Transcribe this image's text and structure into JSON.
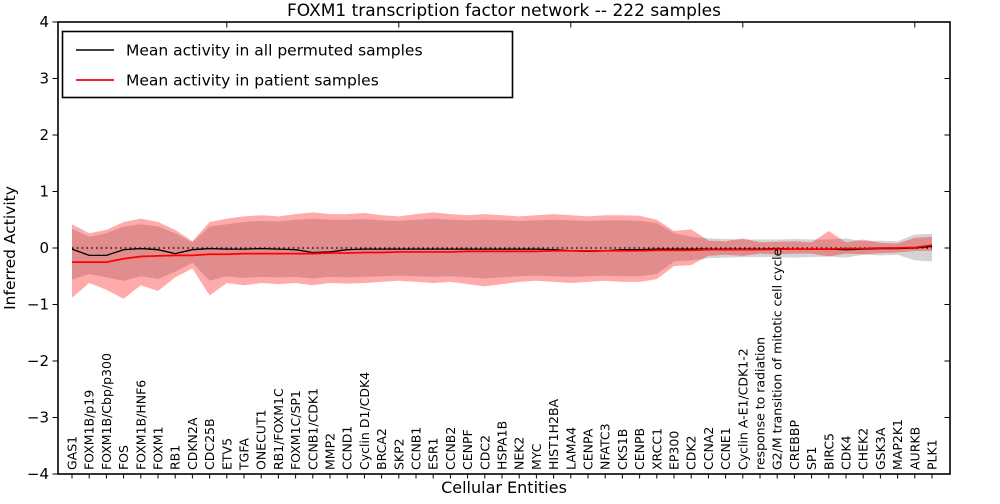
{
  "chart": {
    "title": "FOXM1 transcription factor network -- 222 samples",
    "xlabel": "Cellular Entities",
    "ylabel": "Inferred Activity"
  },
  "legend": {
    "items": [
      {
        "label": "Mean activity in all permuted samples",
        "color": "#000000"
      },
      {
        "label": "Mean activity in patient samples",
        "color": "#ff0000"
      }
    ]
  },
  "chart_data": {
    "type": "line",
    "title": "FOXM1 transcription factor network -- 222 samples",
    "xlabel": "Cellular Entities",
    "ylabel": "Inferred Activity",
    "ylim": [
      -4,
      4
    ],
    "ytick_labels": [
      "4",
      "3",
      "2",
      "1",
      "0",
      "−1",
      "−2",
      "−3",
      "−4"
    ],
    "ytick_values": [
      4,
      3,
      2,
      1,
      0,
      -1,
      -2,
      -3,
      -4
    ],
    "top_axis_tick_positions": [
      10,
      20,
      30,
      40,
      50
    ],
    "grid": false,
    "zero_line": "dotted",
    "legend_position": "upper left",
    "categories": [
      "GAS1",
      "FOXM1B/p19",
      "FOXM1B/Cbp/p300",
      "FOS",
      "FOXM1B/HNF6",
      "FOXM1",
      "RB1",
      "CDKN2A",
      "CDC25B",
      "ETV5",
      "TGFA",
      "ONECUT1",
      "RB1/FOXM1C",
      "FOXM1C/SP1",
      "CCNB1/CDK1",
      "MMP2",
      "CCND1",
      "Cyclin D1/CDK4",
      "BRCA2",
      "SKP2",
      "CCNB1",
      "ESR1",
      "CCNB2",
      "CENPF",
      "CDC2",
      "HSPA1B",
      "NEK2",
      "MYC",
      "HIST1H2BA",
      "LAMA4",
      "CENPA",
      "NFATC3",
      "CKS1B",
      "CENPB",
      "XRCC1",
      "EP300",
      "CDK2",
      "CCNA2",
      "CCNE1",
      "Cyclin A-E1/CDK1-2",
      "response to radiation",
      "G2/M transition of mitotic cell cycle",
      "CREBBP",
      "SP1",
      "BIRC5",
      "CDK4",
      "CHEK2",
      "GSK3A",
      "MAP2K1",
      "AURKB",
      "PLK1"
    ],
    "series": [
      {
        "name": "Mean activity in all permuted samples",
        "color": "#000000",
        "values": [
          -0.02,
          -0.13,
          -0.13,
          -0.03,
          -0.01,
          -0.03,
          -0.1,
          -0.03,
          -0.01,
          -0.02,
          -0.02,
          -0.01,
          -0.02,
          -0.03,
          -0.08,
          -0.07,
          -0.03,
          -0.02,
          -0.02,
          -0.02,
          -0.02,
          -0.02,
          -0.02,
          -0.02,
          -0.02,
          -0.02,
          -0.02,
          -0.02,
          -0.03,
          -0.05,
          -0.06,
          -0.05,
          -0.03,
          -0.03,
          -0.02,
          -0.02,
          -0.02,
          -0.02,
          -0.02,
          -0.02,
          -0.02,
          -0.01,
          -0.02,
          -0.02,
          -0.02,
          -0.03,
          -0.02,
          -0.01,
          -0.01,
          0.0,
          0.03
        ]
      },
      {
        "name": "Mean activity in patient samples",
        "color": "#ff0000",
        "values": [
          -0.25,
          -0.25,
          -0.25,
          -0.19,
          -0.15,
          -0.14,
          -0.13,
          -0.13,
          -0.11,
          -0.11,
          -0.1,
          -0.1,
          -0.1,
          -0.1,
          -0.1,
          -0.09,
          -0.09,
          -0.08,
          -0.08,
          -0.07,
          -0.07,
          -0.07,
          -0.07,
          -0.06,
          -0.06,
          -0.06,
          -0.06,
          -0.06,
          -0.05,
          -0.05,
          -0.05,
          -0.05,
          -0.05,
          -0.05,
          -0.04,
          -0.04,
          -0.04,
          -0.03,
          -0.03,
          -0.03,
          -0.03,
          -0.02,
          -0.02,
          -0.02,
          -0.02,
          -0.01,
          -0.01,
          0.0,
          0.0,
          0.01,
          0.05
        ]
      }
    ],
    "bands": [
      {
        "name": "permuted-samples-range",
        "color": "rgba(110,110,110,0.30)",
        "upper": [
          0.34,
          0.2,
          0.26,
          0.38,
          0.42,
          0.38,
          0.26,
          0.1,
          0.38,
          0.42,
          0.46,
          0.48,
          0.47,
          0.5,
          0.52,
          0.5,
          0.5,
          0.51,
          0.49,
          0.48,
          0.5,
          0.52,
          0.5,
          0.49,
          0.5,
          0.49,
          0.48,
          0.49,
          0.5,
          0.49,
          0.48,
          0.49,
          0.49,
          0.48,
          0.44,
          0.26,
          0.2,
          0.17,
          0.16,
          0.15,
          0.15,
          0.15,
          0.16,
          0.15,
          0.15,
          0.17,
          0.12,
          0.13,
          0.12,
          0.24,
          0.25
        ],
        "lower": [
          -0.56,
          -0.46,
          -0.52,
          -0.58,
          -0.5,
          -0.55,
          -0.42,
          -0.26,
          -0.58,
          -0.5,
          -0.53,
          -0.51,
          -0.52,
          -0.51,
          -0.54,
          -0.51,
          -0.52,
          -0.51,
          -0.5,
          -0.49,
          -0.5,
          -0.51,
          -0.5,
          -0.52,
          -0.54,
          -0.52,
          -0.5,
          -0.49,
          -0.5,
          -0.51,
          -0.5,
          -0.49,
          -0.5,
          -0.5,
          -0.46,
          -0.24,
          -0.22,
          -0.18,
          -0.17,
          -0.16,
          -0.16,
          -0.16,
          -0.17,
          -0.16,
          -0.15,
          -0.17,
          -0.12,
          -0.13,
          -0.12,
          -0.22,
          -0.24
        ]
      },
      {
        "name": "patient-samples-range",
        "color": "rgba(255,0,0,0.33)",
        "upper": [
          0.42,
          0.26,
          0.32,
          0.46,
          0.52,
          0.46,
          0.32,
          0.12,
          0.46,
          0.52,
          0.56,
          0.58,
          0.56,
          0.6,
          0.63,
          0.6,
          0.6,
          0.62,
          0.58,
          0.56,
          0.6,
          0.63,
          0.6,
          0.58,
          0.6,
          0.58,
          0.56,
          0.58,
          0.6,
          0.58,
          0.56,
          0.58,
          0.58,
          0.57,
          0.5,
          0.3,
          0.33,
          0.13,
          0.12,
          0.17,
          0.1,
          0.11,
          0.12,
          0.1,
          0.3,
          0.1,
          0.15,
          0.09,
          0.08,
          0.18,
          0.2
        ],
        "lower": [
          -0.88,
          -0.62,
          -0.74,
          -0.9,
          -0.66,
          -0.76,
          -0.52,
          -0.36,
          -0.84,
          -0.62,
          -0.66,
          -0.62,
          -0.64,
          -0.62,
          -0.66,
          -0.62,
          -0.63,
          -0.62,
          -0.6,
          -0.58,
          -0.6,
          -0.62,
          -0.6,
          -0.64,
          -0.68,
          -0.64,
          -0.6,
          -0.58,
          -0.6,
          -0.62,
          -0.6,
          -0.58,
          -0.6,
          -0.6,
          -0.55,
          -0.32,
          -0.3,
          -0.14,
          -0.12,
          -0.14,
          -0.1,
          -0.11,
          -0.1,
          -0.1,
          -0.15,
          -0.1,
          -0.11,
          -0.09,
          -0.08,
          -0.05,
          -0.05
        ]
      }
    ]
  },
  "colors": {
    "frame": "#000000",
    "background": "#ffffff",
    "zero_line": "#000000"
  }
}
